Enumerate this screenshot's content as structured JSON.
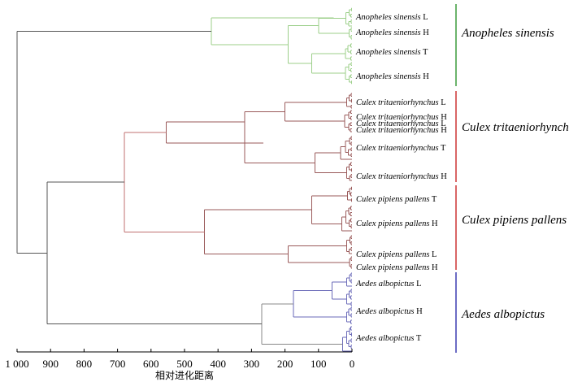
{
  "chart_data": {
    "type": "dendrogram",
    "orientation": "right-to-left",
    "xlabel": "相对进化距离",
    "xlim": [
      1000,
      0
    ],
    "ticks": [
      {
        "value": 1000,
        "label": "1 000"
      },
      {
        "value": 900,
        "label": "900"
      },
      {
        "value": 800,
        "label": "800"
      },
      {
        "value": 700,
        "label": "700"
      },
      {
        "value": 600,
        "label": "600"
      },
      {
        "value": 500,
        "label": "500"
      },
      {
        "value": 400,
        "label": "400"
      },
      {
        "value": 300,
        "label": "300"
      },
      {
        "value": 200,
        "label": "200"
      },
      {
        "value": 100,
        "label": "100"
      },
      {
        "value": 0,
        "label": "0"
      }
    ],
    "merge_heights": {
      "root": 1000,
      "culex_vs_aedes": 910,
      "culex": 680,
      "tritaeniorhynchus": 555,
      "pipiens": 440,
      "anopheles": 420,
      "aedes": 270
    },
    "clusters": [
      {
        "name": "Anopheles sinensis",
        "color": "#3a9a3a",
        "link_color": "#9ccf8a",
        "leaves": [
          {
            "species": "Anopheles sinensis",
            "tag": "L"
          },
          {
            "species": "Anopheles sinensis",
            "tag": "H"
          },
          {
            "species": "Anopheles sinensis",
            "tag": "T"
          },
          {
            "species": "Anopheles sinensis",
            "tag": "H"
          }
        ]
      },
      {
        "name": "Culex tritaeniorhynchus",
        "color": "#cc3333",
        "link_color": "#9a5a5a",
        "leaves": [
          {
            "species": "Culex tritaeniorhynchus",
            "tag": "L"
          },
          {
            "species": "Culex tritaeniorhynchus",
            "tag": "H"
          },
          {
            "species": "Culex tritaeniorhynchus",
            "tag": "L"
          },
          {
            "species": "Culex tritaeniorhynchus",
            "tag": "H"
          },
          {
            "species": "Culex tritaeniorhynchus",
            "tag": "T"
          },
          {
            "species": "Culex tritaeniorhynchus",
            "tag": "H"
          }
        ]
      },
      {
        "name": "Culex pipiens pallens",
        "color": "#cc3333",
        "link_color": "#9a5a5a",
        "leaves": [
          {
            "species": "Culex pipiens pallens",
            "tag": "T"
          },
          {
            "species": "Culex pipiens pallens",
            "tag": "H"
          },
          {
            "species": "Culex pipiens pallens",
            "tag": "L"
          },
          {
            "species": "Culex pipiens pallens",
            "tag": "H"
          }
        ]
      },
      {
        "name": "Aedes albopictus",
        "color": "#3a3ab0",
        "link_color": "#6a6ab8",
        "leaves": [
          {
            "species": "Aedes albopictus",
            "tag": "L"
          },
          {
            "species": "Aedes albopictus",
            "tag": "H"
          },
          {
            "species": "Aedes albopictus",
            "tag": "T"
          }
        ]
      }
    ],
    "colors": {
      "root_links": "#555555",
      "culex_links": "#c07070",
      "aedes_links": "#888888"
    }
  }
}
